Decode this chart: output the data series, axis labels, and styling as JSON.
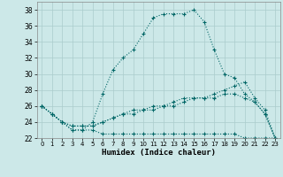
{
  "xlabel": "Humidex (Indice chaleur)",
  "background_color": "#cce8e8",
  "grid_color": "#aacccc",
  "line_color": "#006666",
  "xlim": [
    -0.5,
    23.5
  ],
  "ylim": [
    22,
    39
  ],
  "yticks": [
    22,
    24,
    26,
    28,
    30,
    32,
    34,
    36,
    38
  ],
  "xticks": [
    0,
    1,
    2,
    3,
    4,
    5,
    6,
    7,
    8,
    9,
    10,
    11,
    12,
    13,
    14,
    15,
    16,
    17,
    18,
    19,
    20,
    21,
    22,
    23
  ],
  "series": [
    {
      "x": [
        0,
        1,
        2,
        3,
        4,
        5,
        6,
        7,
        8,
        9,
        10,
        11,
        12,
        13,
        14,
        15,
        16,
        17,
        18,
        19,
        20,
        21,
        22,
        23
      ],
      "y": [
        26,
        25,
        24,
        23,
        23,
        24,
        27.5,
        30.5,
        32,
        33,
        35,
        37,
        37.5,
        37.5,
        37.5,
        38,
        36.5,
        33,
        30,
        29.5,
        27.5,
        26.5,
        25,
        22
      ]
    },
    {
      "x": [
        0,
        1,
        2,
        3,
        4,
        5,
        6,
        7,
        8,
        9,
        10,
        11,
        12,
        13,
        14,
        15,
        16,
        17,
        18,
        19,
        20,
        21,
        22,
        23
      ],
      "y": [
        26,
        25,
        24,
        23.5,
        23.5,
        23.5,
        24,
        24.5,
        25,
        25.5,
        25.5,
        26,
        26,
        26.5,
        27,
        27,
        27,
        27,
        27.5,
        27.5,
        27,
        26.5,
        25,
        22
      ]
    },
    {
      "x": [
        0,
        1,
        2,
        3,
        4,
        5,
        6,
        7,
        8,
        9,
        10,
        11,
        12,
        13,
        14,
        15,
        16,
        17,
        18,
        19,
        20,
        21,
        22,
        23
      ],
      "y": [
        26,
        25,
        24,
        23.5,
        23.5,
        23.5,
        24,
        24.5,
        25,
        25,
        25.5,
        25.5,
        26,
        26,
        26.5,
        27,
        27,
        27.5,
        28,
        28.5,
        29,
        27,
        25.5,
        22
      ]
    },
    {
      "x": [
        0,
        1,
        2,
        3,
        4,
        5,
        6,
        7,
        8,
        9,
        10,
        11,
        12,
        13,
        14,
        15,
        16,
        17,
        18,
        19,
        20,
        21,
        22,
        23
      ],
      "y": [
        26,
        25,
        24,
        23,
        23,
        23,
        22.5,
        22.5,
        22.5,
        22.5,
        22.5,
        22.5,
        22.5,
        22.5,
        22.5,
        22.5,
        22.5,
        22.5,
        22.5,
        22.5,
        22,
        22,
        22,
        22
      ]
    }
  ]
}
